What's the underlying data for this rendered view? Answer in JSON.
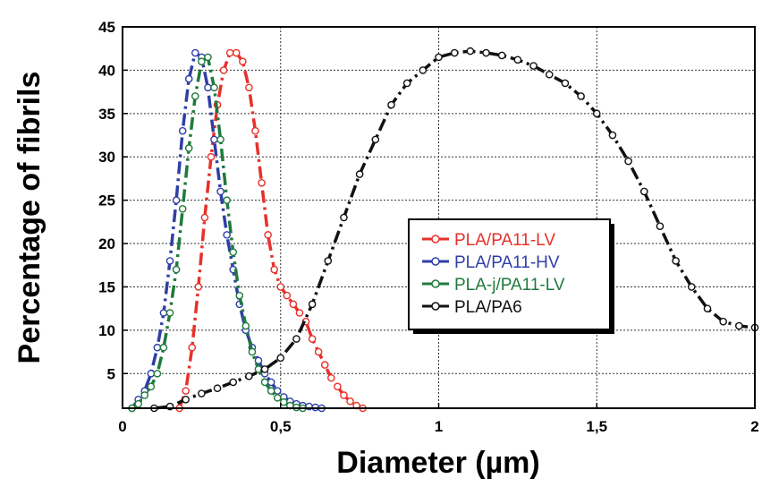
{
  "chart_data": {
    "type": "line",
    "xlabel": "Diameter (µm)",
    "ylabel": "Percentage of fibrils",
    "xlim": [
      0,
      2
    ],
    "ylim": [
      1,
      45
    ],
    "x_ticks": [
      0,
      0.5,
      1,
      1.5,
      2
    ],
    "x_tick_labels": [
      "0",
      "0,5",
      "1",
      "1,5",
      "2"
    ],
    "y_ticks": [
      5,
      10,
      15,
      20,
      25,
      30,
      35,
      40,
      45
    ],
    "y_tick_labels": [
      "5",
      "10",
      "15",
      "20",
      "25",
      "30",
      "35",
      "40",
      "45"
    ],
    "grid": "dashed",
    "legend_position": "center-right",
    "series": [
      {
        "name": "PLA/PA11-LV",
        "color": "#e8302a",
        "x": [
          0.18,
          0.2,
          0.22,
          0.24,
          0.26,
          0.28,
          0.3,
          0.32,
          0.34,
          0.36,
          0.38,
          0.4,
          0.42,
          0.44,
          0.46,
          0.48,
          0.5,
          0.52,
          0.54,
          0.56,
          0.58,
          0.6,
          0.62,
          0.64,
          0.66,
          0.68,
          0.7,
          0.72,
          0.74,
          0.76
        ],
        "y": [
          1,
          3,
          8,
          15,
          23,
          30,
          36,
          40,
          42,
          42,
          41,
          38,
          33,
          27,
          21,
          17,
          15,
          14,
          13,
          12,
          11,
          9,
          7.5,
          6,
          4.5,
          3.5,
          2.5,
          1.8,
          1.3,
          1
        ]
      },
      {
        "name": "PLA/PA11-HV",
        "color": "#2f3fa6",
        "x": [
          0.03,
          0.05,
          0.07,
          0.09,
          0.11,
          0.13,
          0.15,
          0.17,
          0.19,
          0.21,
          0.23,
          0.25,
          0.27,
          0.29,
          0.31,
          0.33,
          0.35,
          0.37,
          0.39,
          0.41,
          0.43,
          0.45,
          0.47,
          0.49,
          0.51,
          0.53,
          0.55,
          0.57,
          0.59,
          0.61,
          0.63
        ],
        "y": [
          1,
          2,
          3,
          5,
          8,
          12,
          18,
          25,
          33,
          39,
          42,
          41.5,
          38,
          32,
          26,
          21,
          17,
          13,
          10,
          8,
          6.5,
          5,
          4,
          3,
          2.3,
          1.8,
          1.5,
          1.3,
          1.2,
          1.1,
          1
        ]
      },
      {
        "name": "PLA-j/PA11-LV",
        "color": "#1f7a3c",
        "x": [
          0.03,
          0.05,
          0.07,
          0.09,
          0.11,
          0.13,
          0.15,
          0.17,
          0.19,
          0.21,
          0.23,
          0.25,
          0.27,
          0.29,
          0.31,
          0.33,
          0.35,
          0.37,
          0.39,
          0.41,
          0.43,
          0.45,
          0.47,
          0.49,
          0.51,
          0.53,
          0.55,
          0.57
        ],
        "y": [
          1,
          1.5,
          2.5,
          3.5,
          5,
          8,
          12,
          17,
          24,
          31,
          37,
          41,
          41.5,
          38,
          32,
          25,
          19,
          14,
          10.5,
          7.5,
          5.5,
          4,
          3,
          2.2,
          1.7,
          1.3,
          1.1,
          1
        ]
      },
      {
        "name": "PLA/PA6",
        "color": "#111111",
        "x": [
          0.1,
          0.15,
          0.2,
          0.25,
          0.3,
          0.35,
          0.4,
          0.45,
          0.5,
          0.55,
          0.6,
          0.65,
          0.7,
          0.75,
          0.8,
          0.85,
          0.9,
          0.95,
          1.0,
          1.05,
          1.1,
          1.15,
          1.2,
          1.25,
          1.3,
          1.35,
          1.4,
          1.45,
          1.5,
          1.55,
          1.6,
          1.65,
          1.7,
          1.75,
          1.8,
          1.85,
          1.9,
          1.95,
          2.0
        ],
        "y": [
          1,
          1.2,
          2,
          2.7,
          3.3,
          4,
          4.7,
          5.5,
          6.8,
          9,
          13,
          18,
          23,
          28,
          32,
          36,
          38.5,
          40,
          41.5,
          42,
          42.2,
          42,
          41.7,
          41.2,
          40.5,
          39.5,
          38.5,
          37,
          35,
          32.5,
          29.5,
          26,
          22,
          18,
          15,
          12.5,
          11,
          10.5,
          10.3
        ]
      }
    ]
  }
}
